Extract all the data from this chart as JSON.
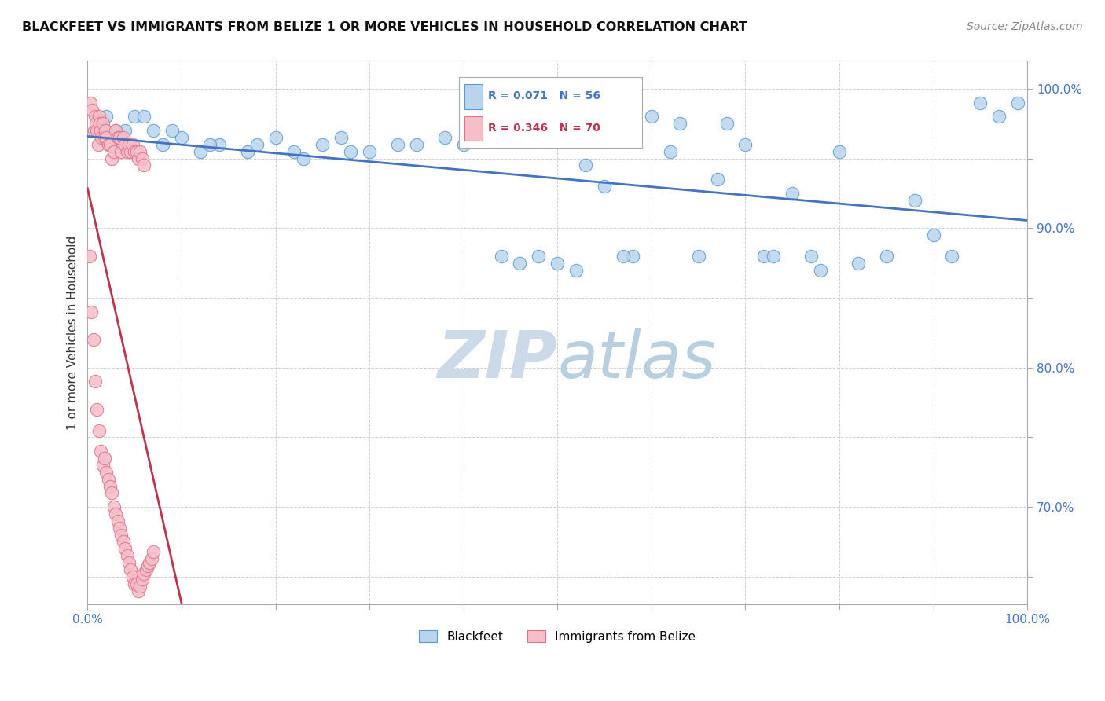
{
  "title": "BLACKFEET VS IMMIGRANTS FROM BELIZE 1 OR MORE VEHICLES IN HOUSEHOLD CORRELATION CHART",
  "source": "Source: ZipAtlas.com",
  "ylabel": "1 or more Vehicles in Household",
  "legend_blue_label": "Blackfeet",
  "legend_pink_label": "Immigrants from Belize",
  "legend_blue_R": "R = 0.071",
  "legend_blue_N": "N = 56",
  "legend_pink_R": "R = 0.346",
  "legend_pink_N": "N = 70",
  "blue_color": "#bad4ec",
  "pink_color": "#f5bec8",
  "blue_edge_color": "#5b9bd5",
  "pink_edge_color": "#e0728a",
  "blue_line_color": "#4472c4",
  "pink_line_color": "#c0334d",
  "watermark_color": "#ccd9e8",
  "background_color": "#ffffff",
  "xlim": [
    0.0,
    100.0
  ],
  "ylim": [
    63.0,
    102.0
  ],
  "yticks": [
    65.0,
    70.0,
    75.0,
    80.0,
    85.0,
    90.0,
    95.0,
    100.0
  ],
  "ytick_labels": [
    "",
    "70.0%",
    "",
    "80.0%",
    "",
    "90.0%",
    "",
    "100.0%"
  ],
  "xticks": [
    0,
    10,
    20,
    30,
    40,
    50,
    60,
    70,
    80,
    90,
    100
  ],
  "xtick_labels": [
    "0.0%",
    "",
    "",
    "",
    "",
    "",
    "",
    "",
    "",
    "",
    "100.0%"
  ],
  "blue_x": [
    2,
    4,
    5,
    7,
    8,
    10,
    12,
    14,
    17,
    20,
    22,
    25,
    28,
    30,
    35,
    38,
    42,
    46,
    50,
    52,
    55,
    58,
    60,
    63,
    65,
    68,
    70,
    72,
    75,
    78,
    80,
    82,
    85,
    88,
    90,
    92,
    95,
    97,
    99,
    3,
    6,
    9,
    13,
    18,
    23,
    27,
    33,
    40,
    44,
    48,
    53,
    57,
    62,
    67,
    73,
    77
  ],
  "blue_y": [
    98,
    97,
    98,
    97,
    96,
    96.5,
    95.5,
    96,
    95.5,
    96.5,
    95.5,
    96,
    95.5,
    95.5,
    96,
    96.5,
    96.5,
    87.5,
    87.5,
    87,
    93,
    88,
    98,
    97.5,
    88,
    97.5,
    96,
    88,
    92.5,
    87,
    95.5,
    87.5,
    88,
    92,
    89.5,
    88,
    99,
    98,
    99,
    97,
    98,
    97,
    96,
    96,
    95,
    96.5,
    96,
    96,
    88,
    88,
    94.5,
    88,
    95.5,
    93.5,
    88,
    88
  ],
  "pink_x": [
    0.3,
    0.5,
    0.7,
    0.8,
    0.9,
    1.0,
    1.1,
    1.2,
    1.3,
    1.4,
    1.5,
    1.6,
    1.8,
    1.9,
    2.0,
    2.2,
    2.4,
    2.6,
    2.8,
    3.0,
    3.2,
    3.4,
    3.6,
    3.8,
    4.0,
    4.2,
    4.4,
    4.6,
    4.8,
    5.0,
    5.2,
    5.4,
    5.6,
    5.8,
    6.0,
    0.2,
    0.4,
    0.6,
    0.8,
    1.0,
    1.2,
    1.4,
    1.6,
    1.8,
    2.0,
    2.2,
    2.4,
    2.6,
    2.8,
    3.0,
    3.2,
    3.4,
    3.6,
    3.8,
    4.0,
    4.2,
    4.4,
    4.6,
    4.8,
    5.0,
    5.2,
    5.4,
    5.6,
    5.8,
    6.0,
    6.2,
    6.4,
    6.6,
    6.8,
    7.0
  ],
  "pink_y": [
    99,
    98.5,
    97,
    98,
    97.5,
    97,
    96,
    98,
    97.5,
    97,
    96.5,
    97.5,
    96.5,
    97,
    96.5,
    96,
    96,
    95,
    95.5,
    97,
    96.5,
    96.5,
    95.5,
    96.5,
    96,
    95.5,
    96,
    95.5,
    96,
    95.5,
    95.5,
    95,
    95.5,
    95,
    94.5,
    88,
    84,
    82,
    79,
    77,
    75.5,
    74,
    73,
    73.5,
    72.5,
    72,
    71.5,
    71,
    70,
    69.5,
    69,
    68.5,
    68,
    67.5,
    67,
    66.5,
    66,
    65.5,
    65,
    64.5,
    64.5,
    64,
    64.3,
    64.8,
    65.2,
    65.5,
    65.8,
    66,
    66.3,
    66.8
  ]
}
